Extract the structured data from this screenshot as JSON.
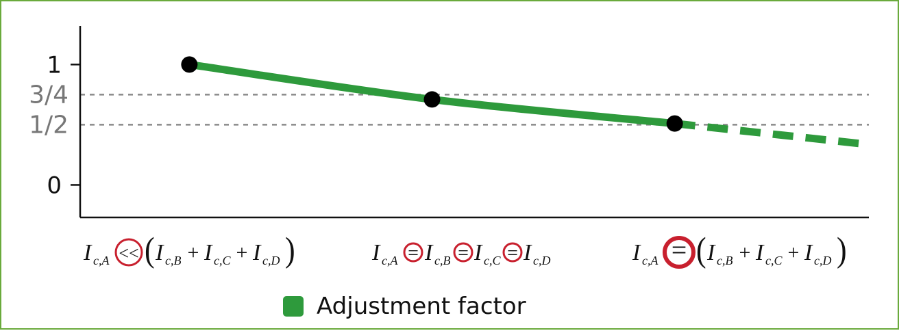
{
  "colors": {
    "border": "#6aaa3c",
    "curve": "#2e9a3c",
    "point": "#000000",
    "gridline": "#8a8a8a",
    "circle": "#c8202e",
    "tick_label_fraction": "#777777"
  },
  "chart_data": {
    "type": "line",
    "y_ticks": [
      {
        "value": 1,
        "label": "1"
      },
      {
        "value": 0.75,
        "label": "3/4"
      },
      {
        "value": 0.5,
        "label": "1/2"
      },
      {
        "value": 0,
        "label": "0"
      }
    ],
    "ylim": [
      -0.27,
      1.32
    ],
    "xlim": [
      -0.45,
      2.8
    ],
    "reference_lines": [
      0.75,
      0.5
    ],
    "categories": [
      {
        "x": 0,
        "lhs": "I",
        "lhs_sub": "c,A",
        "op": "<<",
        "terms": [
          "I",
          "I",
          "I"
        ],
        "term_subs": [
          "c,B",
          "c,C",
          "c,D"
        ],
        "joiner": "+",
        "grouped": true
      },
      {
        "x": 1,
        "lhs": "I",
        "lhs_sub": "c,A",
        "op": "=",
        "terms": [
          "I",
          "I",
          "I"
        ],
        "term_subs": [
          "c,B",
          "c,C",
          "c,D"
        ],
        "joiner": "=",
        "grouped": false
      },
      {
        "x": 2,
        "lhs": "I",
        "lhs_sub": "c,A",
        "op": "=",
        "terms": [
          "I",
          "I",
          "I"
        ],
        "term_subs": [
          "c,B",
          "c,C",
          "c,D"
        ],
        "joiner": "+",
        "grouped": true
      }
    ],
    "series": [
      {
        "name": "Adjustment factor",
        "points": [
          {
            "x": 0,
            "y": 1.0
          },
          {
            "x": 1,
            "y": 0.71
          },
          {
            "x": 2,
            "y": 0.51
          }
        ],
        "extrapolation": [
          {
            "x": 2,
            "y": 0.51
          },
          {
            "x": 2.78,
            "y": 0.34
          }
        ]
      }
    ],
    "legend": {
      "position": "bottom-center",
      "label": "Adjustment factor"
    }
  }
}
